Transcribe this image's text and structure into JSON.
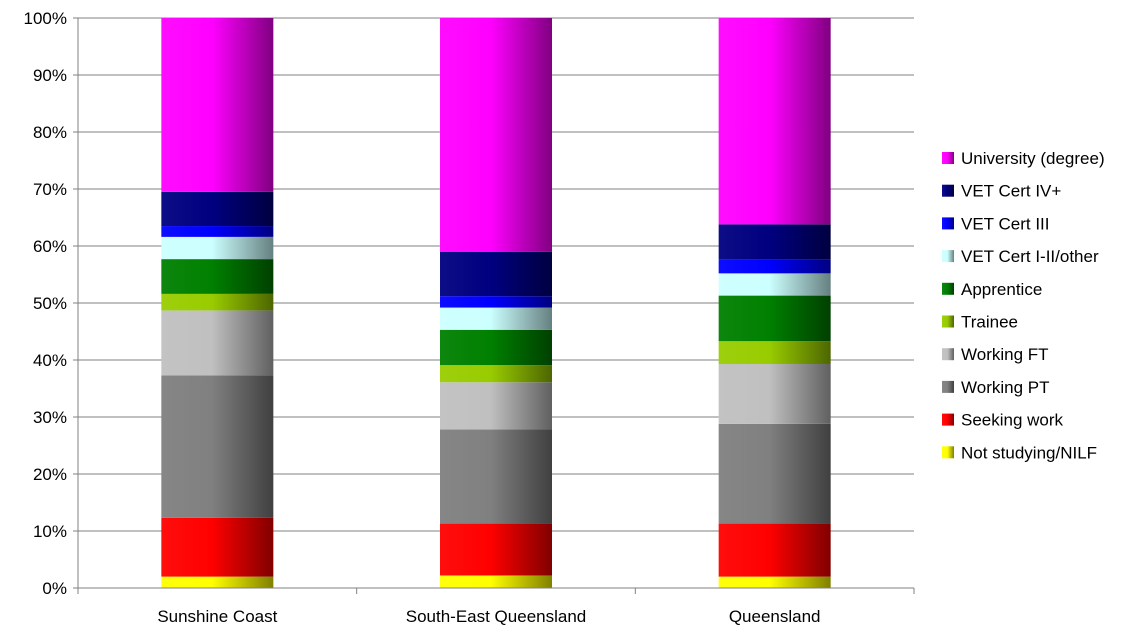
{
  "chart_data": {
    "type": "bar",
    "stacked": true,
    "percent": true,
    "categories": [
      "Sunshine Coast",
      "South-East Queensland",
      "Queensland"
    ],
    "ylim": [
      0,
      100
    ],
    "yticks": [
      "0%",
      "10%",
      "20%",
      "30%",
      "40%",
      "50%",
      "60%",
      "70%",
      "80%",
      "90%",
      "100%"
    ],
    "grid": true,
    "legend_position": "right",
    "series": [
      {
        "name": "Not studying/NILF",
        "color": "#ffff00",
        "values": [
          2,
          2.2,
          2
        ]
      },
      {
        "name": "Seeking work",
        "color": "#ff0000",
        "values": [
          10.3,
          9.1,
          9.3
        ]
      },
      {
        "name": "Working PT",
        "color": "#808080",
        "values": [
          25,
          16.5,
          17.5
        ]
      },
      {
        "name": "Working FT",
        "color": "#c0c0c0",
        "values": [
          11.4,
          8.3,
          10.5
        ]
      },
      {
        "name": "Trainee",
        "color": "#99cc00",
        "values": [
          2.9,
          3,
          4
        ]
      },
      {
        "name": "Apprentice",
        "color": "#008000",
        "values": [
          6.1,
          6.2,
          8
        ]
      },
      {
        "name": "VET Cert I-II/other",
        "color": "#ccffff",
        "values": [
          3.9,
          3.9,
          3.9
        ]
      },
      {
        "name": "VET Cert III",
        "color": "#0000ff",
        "values": [
          1.9,
          2,
          2.4
        ]
      },
      {
        "name": "VET Cert IV+",
        "color": "#000080",
        "values": [
          6,
          7.8,
          6.2
        ]
      },
      {
        "name": "University (degree)",
        "color": "#ff00ff",
        "values": [
          30.5,
          41,
          36.2
        ]
      }
    ]
  }
}
